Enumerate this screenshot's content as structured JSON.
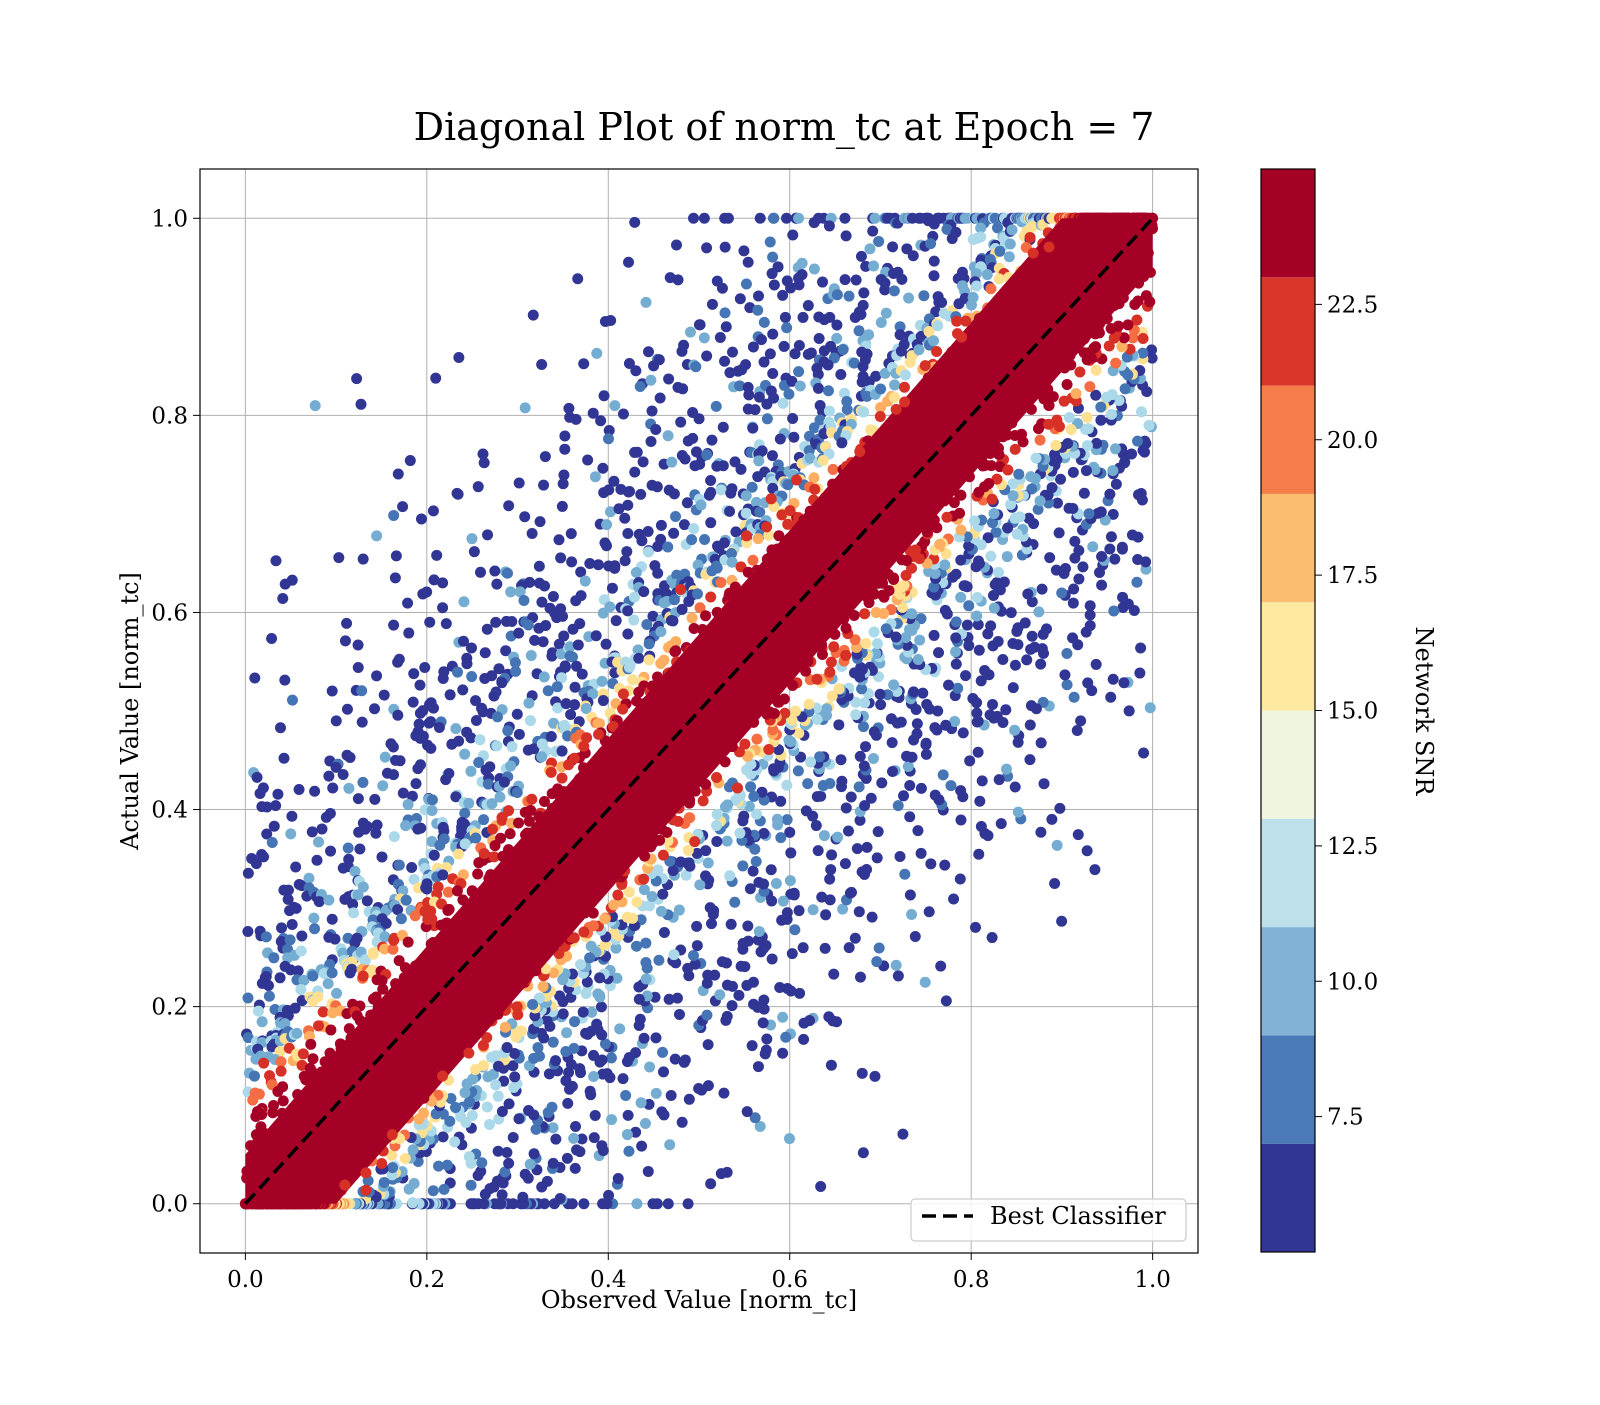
{
  "chart_data": {
    "type": "scatter",
    "title": "Diagonal Plot of norm_tc at Epoch = 7",
    "xlabel": "Observed Value [norm_tc]",
    "ylabel": "Actual Value [norm_tc]",
    "xlim": [
      -0.05,
      1.05
    ],
    "ylim": [
      -0.05,
      1.05
    ],
    "xticks": [
      "0.0",
      "0.2",
      "0.4",
      "0.6",
      "0.8",
      "1.0"
    ],
    "yticks": [
      "0.0",
      "0.2",
      "0.4",
      "0.6",
      "0.8",
      "1.0"
    ],
    "xtick_values": [
      0.0,
      0.2,
      0.4,
      0.6,
      0.8,
      1.0
    ],
    "ytick_values": [
      0.0,
      0.2,
      0.4,
      0.6,
      0.8,
      1.0
    ],
    "grid": true,
    "reference_line": {
      "name": "Best Classifier",
      "x": [
        0.0,
        1.0
      ],
      "y": [
        0.0,
        1.0
      ],
      "style": "dashed",
      "color": "#000000"
    },
    "legend": {
      "position": "lower-right",
      "entries": [
        "Best Classifier"
      ]
    },
    "colorbar": {
      "label": "Network SNR",
      "range": [
        5.0,
        25.0
      ],
      "ticks": [
        "7.5",
        "10.0",
        "12.5",
        "15.0",
        "17.5",
        "20.0",
        "22.5"
      ],
      "tick_values": [
        7.5,
        10.0,
        12.5,
        15.0,
        17.5,
        20.0,
        22.5
      ],
      "colors": [
        "#313695",
        "#4575b4",
        "#74add1",
        "#abd9e9",
        "#e0f3f8",
        "#ffffbf",
        "#fee090",
        "#fdae61",
        "#f46d43",
        "#d73027",
        "#a50026"
      ],
      "bands": [
        {
          "color": "#313695",
          "from": 5.0,
          "to": 7.0
        },
        {
          "color": "#4a7ab8",
          "from": 7.0,
          "to": 9.0
        },
        {
          "color": "#80b3d6",
          "from": 9.0,
          "to": 11.0
        },
        {
          "color": "#bde0eb",
          "from": 11.0,
          "to": 13.0
        },
        {
          "color": "#eef6e0",
          "from": 13.0,
          "to": 15.0
        },
        {
          "color": "#fde9a0",
          "from": 15.0,
          "to": 17.0
        },
        {
          "color": "#fbbd6f",
          "from": 17.0,
          "to": 19.0
        },
        {
          "color": "#f47d4a",
          "from": 19.0,
          "to": 21.0
        },
        {
          "color": "#d93729",
          "from": 21.0,
          "to": 23.0
        },
        {
          "color": "#a50026",
          "from": 23.0,
          "to": 25.0
        }
      ]
    },
    "point_cloud": {
      "description_x_range": [
        0.0,
        1.0
      ],
      "description_y_range": [
        0.0,
        1.0
      ],
      "core_band_halfwidth": 0.1,
      "high_snr_color": "#a50026",
      "low_snr_color": "#313695"
    }
  }
}
